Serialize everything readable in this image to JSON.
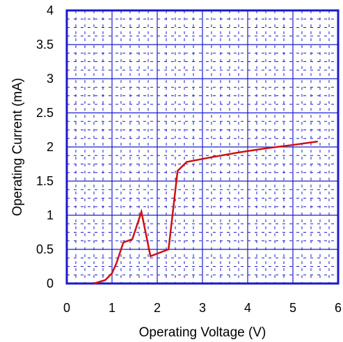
{
  "chart_data": {
    "type": "line",
    "title": "",
    "xlabel": "Operating Voltage (V)",
    "ylabel": "Operating Current (mA)",
    "xlim": [
      0,
      6
    ],
    "ylim": [
      0,
      4
    ],
    "x_ticks": [
      "0",
      "1",
      "2",
      "3",
      "4",
      "5",
      "6"
    ],
    "y_ticks": [
      "0",
      "0.5",
      "1",
      "1.5",
      "2",
      "2.5",
      "3",
      "3.5",
      "4"
    ],
    "grid": "major solid, minor dashed",
    "series": [
      {
        "name": "",
        "color": "#cc1111",
        "x": [
          0.6,
          0.85,
          1.0,
          1.1,
          1.25,
          1.45,
          1.65,
          1.85,
          2.25,
          2.45,
          2.65,
          3.2,
          3.8,
          4.4,
          5.0,
          5.55
        ],
        "y": [
          0.0,
          0.05,
          0.15,
          0.3,
          0.6,
          0.65,
          1.05,
          0.4,
          0.5,
          1.65,
          1.78,
          1.85,
          1.92,
          1.98,
          2.03,
          2.08
        ]
      }
    ]
  },
  "colors": {
    "grid": "#1a1acc",
    "frame": "#1a1acc",
    "line": "#cc1111"
  }
}
